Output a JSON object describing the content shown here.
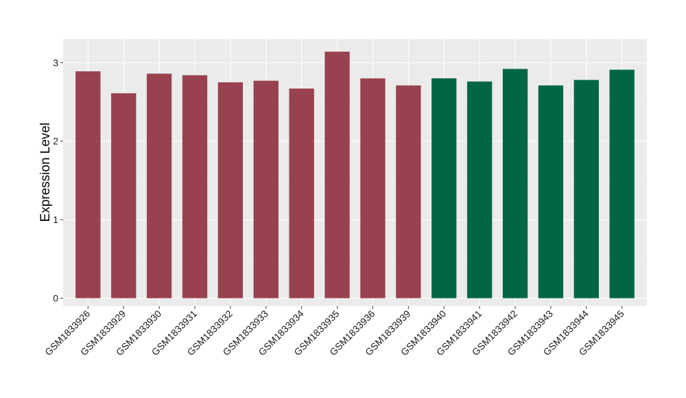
{
  "chart_data": {
    "type": "bar",
    "title": "",
    "xlabel": "",
    "ylabel": "Expression Level",
    "ylim": [
      -0.1,
      3.3
    ],
    "yticks": [
      0,
      1,
      2,
      3
    ],
    "grid": true,
    "legend": "none",
    "panel_background": "#ebebeb",
    "categories": [
      "GSM1833926",
      "GSM1833929",
      "GSM1833930",
      "GSM1833931",
      "GSM1833932",
      "GSM1833933",
      "GSM1833934",
      "GSM1833935",
      "GSM1833936",
      "GSM1833939",
      "GSM1833940",
      "GSM1833941",
      "GSM1833942",
      "GSM1833943",
      "GSM1833944",
      "GSM1833945"
    ],
    "values": [
      2.89,
      2.61,
      2.86,
      2.84,
      2.75,
      2.77,
      2.67,
      3.14,
      2.8,
      2.71,
      2.8,
      2.76,
      2.92,
      2.71,
      2.78,
      2.91
    ],
    "bar_colors": [
      "#99424f",
      "#99424f",
      "#99424f",
      "#99424f",
      "#99424f",
      "#99424f",
      "#99424f",
      "#99424f",
      "#99424f",
      "#99424f",
      "#006643",
      "#006643",
      "#006643",
      "#006643",
      "#006643",
      "#006643"
    ]
  }
}
